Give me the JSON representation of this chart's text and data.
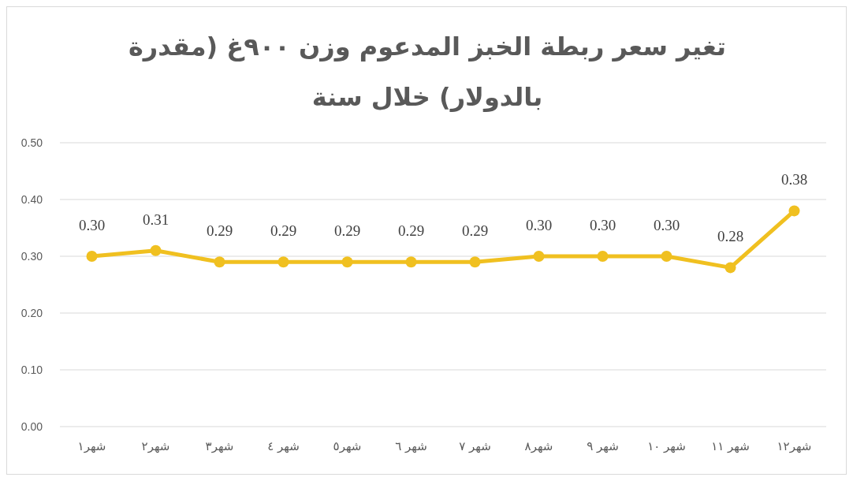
{
  "chart_data": {
    "type": "line",
    "title": "تغير سعر ربطة الخبز المدعوم وزن ٩٠٠غ (مقدرة بالدولار) خلال سنة",
    "categories": [
      "شهر١",
      "شهر٢",
      "شهر٣",
      "شهر ٤",
      "شهر٥",
      "شهر ٦",
      "شهر ٧",
      "شهر٨",
      "شهر ٩",
      "شهر ١٠",
      "شهر ١١",
      "شهر١٢"
    ],
    "series": [
      {
        "color": "#f0c020",
        "values": [
          0.3,
          0.31,
          0.29,
          0.29,
          0.29,
          0.29,
          0.29,
          0.3,
          0.3,
          0.3,
          0.28,
          0.38
        ],
        "value_labels": [
          "0.30",
          "0.31",
          "0.29",
          "0.29",
          "0.29",
          "0.29",
          "0.29",
          "0.30",
          "0.30",
          "0.30",
          "0.28",
          "0.38"
        ]
      }
    ],
    "ylim": [
      0,
      0.5
    ],
    "yticks": [
      {
        "value": 0,
        "label": "0.00"
      },
      {
        "value": 0.1,
        "label": "0.10"
      },
      {
        "value": 0.2,
        "label": "0.20"
      },
      {
        "value": 0.3,
        "label": "0.30"
      },
      {
        "value": 0.4,
        "label": "0.40"
      },
      {
        "value": 0.5,
        "label": "0.50"
      }
    ],
    "grid": "y",
    "marker": "circle",
    "line_style": "solid"
  }
}
